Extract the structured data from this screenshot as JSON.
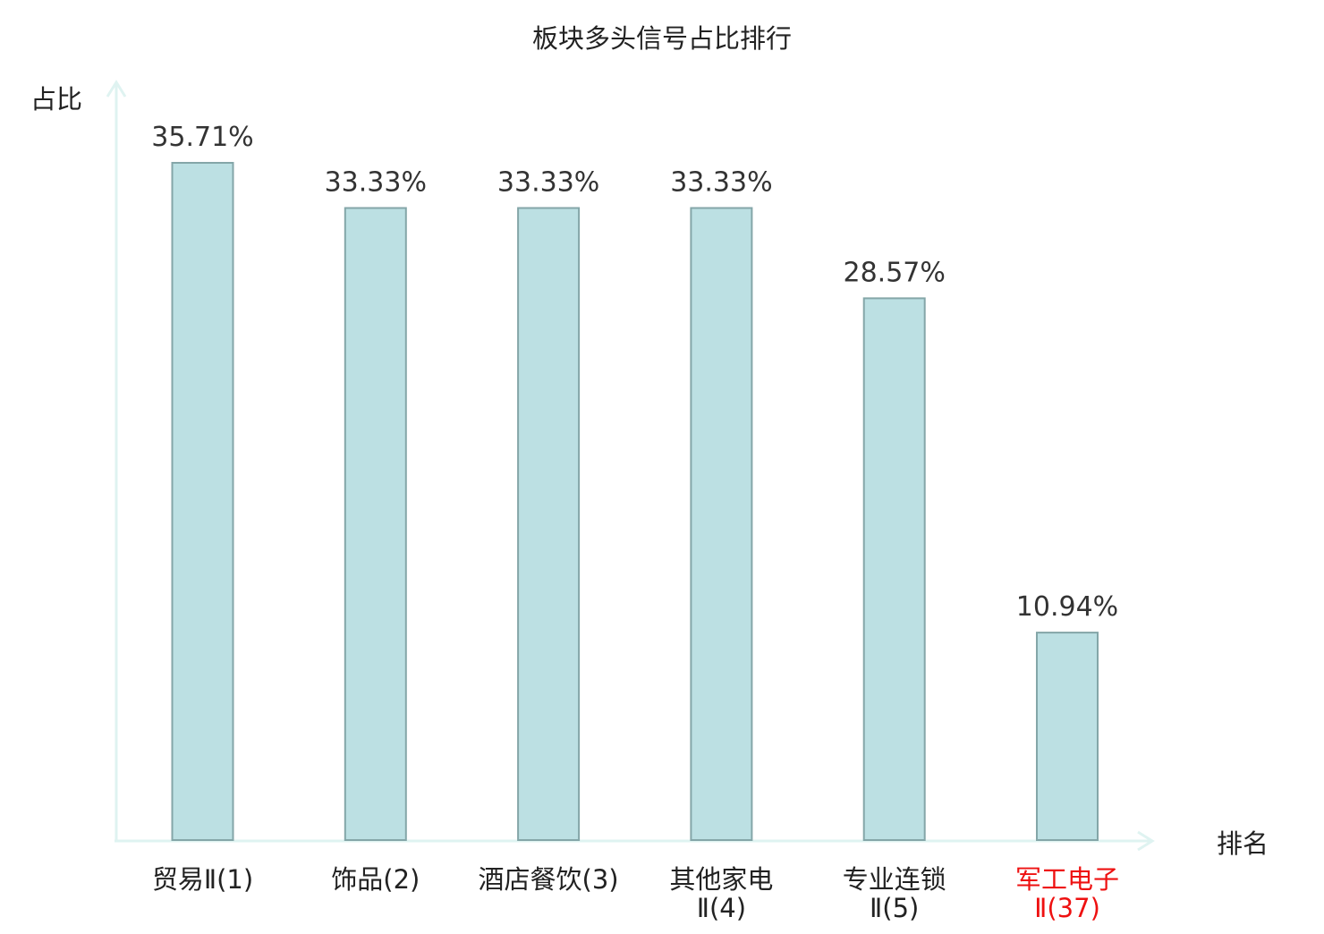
{
  "chart_data": {
    "type": "bar",
    "title": "板块多头信号占比排行",
    "xlabel": "排名",
    "ylabel": "占比",
    "ylim": [
      0,
      40
    ],
    "grid": false,
    "legend": "none",
    "categories": [
      [
        "贸易Ⅱ(1)"
      ],
      [
        "饰品(2)"
      ],
      [
        "酒店餐饮(3)"
      ],
      [
        "其他家电",
        "Ⅱ(4)"
      ],
      [
        "专业连锁",
        "Ⅱ(5)"
      ],
      [
        "军工电子",
        "Ⅱ(37)"
      ]
    ],
    "values": [
      35.71,
      33.33,
      33.33,
      33.33,
      28.57,
      10.94
    ],
    "value_labels": [
      "35.71%",
      "33.33%",
      "33.33%",
      "33.33%",
      "28.57%",
      "10.94%"
    ],
    "highlight_index": 5
  },
  "colors": {
    "bar_fill": "#bce0e3",
    "bar_stroke": "#84a6a8",
    "axis": "#dff3f1",
    "text": "#222222",
    "value_text": "#333333",
    "highlight": "#ee1111"
  }
}
